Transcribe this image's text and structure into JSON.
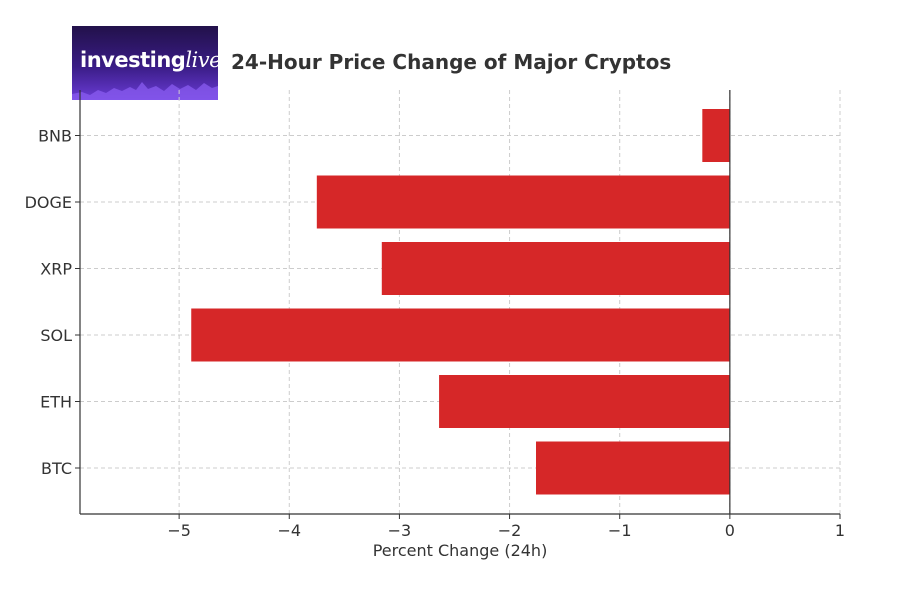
{
  "logo": {
    "brand_a": "investing",
    "brand_b": "live"
  },
  "chart_data": {
    "type": "bar",
    "orientation": "horizontal",
    "title": "24-Hour Price Change of Major Cryptos",
    "xlabel": "Percent Change (24h)",
    "ylabel": "",
    "categories": [
      "BTC",
      "ETH",
      "SOL",
      "XRP",
      "DOGE",
      "BNB"
    ],
    "values": [
      -1.76,
      -2.64,
      -4.89,
      -3.16,
      -3.75,
      -0.25
    ],
    "xlim": [
      -5.9,
      1.0
    ],
    "xticks": [
      -5,
      -4,
      -3,
      -2,
      -1,
      0,
      1
    ],
    "xtick_labels": [
      "−5",
      "−4",
      "−3",
      "−2",
      "−1",
      "0",
      "1"
    ],
    "grid": true,
    "bar_color": "#d62728"
  }
}
